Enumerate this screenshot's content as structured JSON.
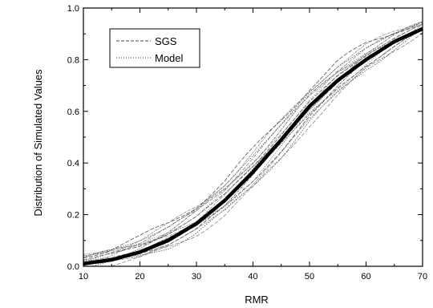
{
  "chart_data": {
    "type": "line",
    "xlabel": "RMR",
    "ylabel": "Distribution of Simulated Values",
    "xlim": [
      10,
      70
    ],
    "ylim": [
      0.0,
      1.0
    ],
    "xticks": [
      "10",
      "20",
      "30",
      "40",
      "50",
      "60",
      "70"
    ],
    "yticks": [
      "0.0",
      "0.2",
      "0.4",
      "0.6",
      "0.8",
      "1.0"
    ],
    "grid": false,
    "legend_position": "top-left",
    "legend": [
      {
        "label": "SGS",
        "style": "dashed",
        "color": "#444444"
      },
      {
        "label": "Model",
        "style": "dotted",
        "color": "#444444"
      }
    ],
    "series": [
      {
        "name": "Model",
        "role": "median",
        "x": [
          10,
          15,
          20,
          25,
          30,
          35,
          40,
          45,
          50,
          55,
          60,
          65,
          70
        ],
        "y": [
          0.01,
          0.025,
          0.055,
          0.1,
          0.165,
          0.255,
          0.365,
          0.49,
          0.62,
          0.72,
          0.8,
          0.87,
          0.92
        ]
      },
      {
        "name": "SGS",
        "role": "band-lower",
        "x": [
          10,
          15,
          20,
          25,
          30,
          35,
          40,
          45,
          50,
          55,
          60,
          65,
          70
        ],
        "y": [
          0.0,
          0.01,
          0.03,
          0.07,
          0.125,
          0.2,
          0.3,
          0.42,
          0.55,
          0.66,
          0.76,
          0.84,
          0.91
        ]
      },
      {
        "name": "SGS",
        "role": "band-upper",
        "x": [
          10,
          15,
          20,
          25,
          30,
          35,
          40,
          45,
          50,
          55,
          60,
          65,
          70
        ],
        "y": [
          0.04,
          0.07,
          0.11,
          0.165,
          0.235,
          0.33,
          0.45,
          0.57,
          0.69,
          0.79,
          0.86,
          0.91,
          0.95
        ]
      }
    ]
  }
}
